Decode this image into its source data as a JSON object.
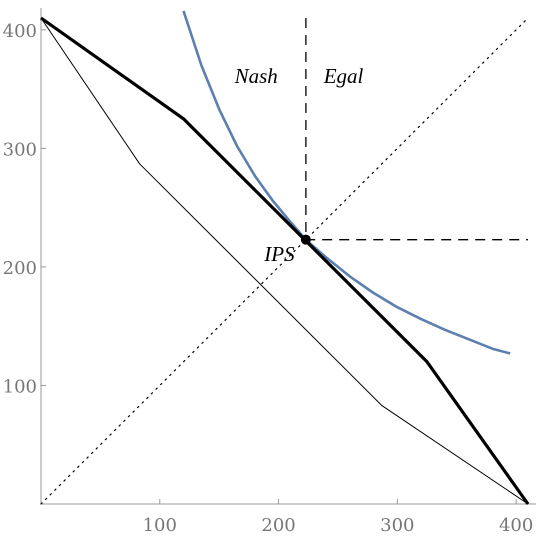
{
  "chart_data": {
    "type": "line",
    "title": "",
    "xlabel": "",
    "ylabel": "",
    "xlim": [
      0,
      410
    ],
    "ylim": [
      0,
      410
    ],
    "xticks": [
      100,
      200,
      300,
      400
    ],
    "yticks": [
      100,
      200,
      300,
      400
    ],
    "grid": false,
    "legend": "none",
    "series": [
      {
        "name": "",
        "style": "thick-solid",
        "color": "#000000",
        "points": [
          [
            0,
            410
          ],
          [
            120,
            325
          ],
          [
            325,
            120
          ],
          [
            410,
            0
          ]
        ]
      },
      {
        "name": "",
        "style": "thin-solid",
        "color": "#000000",
        "points": [
          [
            0,
            410
          ],
          [
            83,
            287
          ],
          [
            287,
            83
          ],
          [
            410,
            0
          ]
        ]
      },
      {
        "name": "",
        "style": "curve",
        "color": "#5b7fb0",
        "points": [
          [
            120,
            416
          ],
          [
            135,
            370
          ],
          [
            150,
            333
          ],
          [
            165,
            302
          ],
          [
            180,
            277
          ],
          [
            195,
            256
          ],
          [
            210,
            238
          ],
          [
            223,
            223
          ],
          [
            240,
            208
          ],
          [
            260,
            192
          ],
          [
            280,
            178
          ],
          [
            300,
            166
          ],
          [
            320,
            156
          ],
          [
            340,
            147
          ],
          [
            360,
            139
          ],
          [
            380,
            131
          ],
          [
            395,
            127
          ]
        ]
      },
      {
        "name": "",
        "style": "dotted",
        "color": "#000000",
        "points": [
          [
            0,
            0
          ],
          [
            410,
            410
          ]
        ]
      },
      {
        "name": "",
        "style": "dashed",
        "color": "#000000",
        "points": [
          [
            223,
            410
          ],
          [
            223,
            223
          ],
          [
            410,
            223
          ]
        ]
      }
    ],
    "points": [
      {
        "label": "IPS",
        "x": 223,
        "y": 223
      }
    ],
    "annotations": [
      {
        "text": "Nash",
        "x": 163,
        "y": 355
      },
      {
        "text": "Egal",
        "x": 238,
        "y": 355
      },
      {
        "text": "IPS",
        "x": 188,
        "y": 205
      }
    ]
  }
}
